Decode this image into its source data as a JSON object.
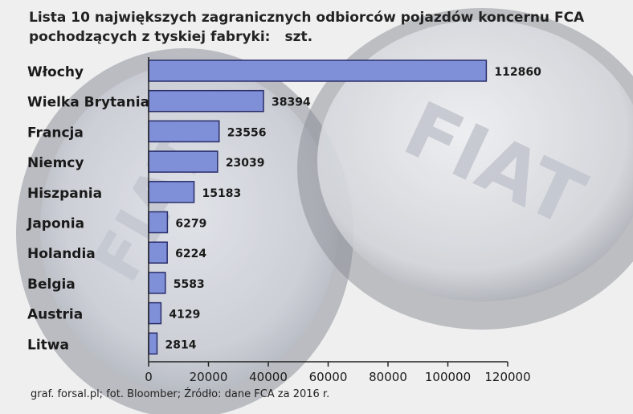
{
  "title_line1": "Lista 10 największych zagranicznych odbiorców pojazdów koncernu FCA",
  "title_line2": "pochodzących z tyskiej fabryki:",
  "unit": "szt.",
  "background_logo_text": "FIAT",
  "source": "graf. forsal.pl; fot. Bloomber; Źródło: dane FCA za 2016 r.",
  "colors": {
    "bar_fill": "#7f8fd8",
    "bar_stroke": "#2a2e6a",
    "text": "#1a1a1a"
  },
  "chart_data": {
    "type": "bar",
    "orientation": "horizontal",
    "categories": [
      "Włochy",
      "Wielka Brytania",
      "Francja",
      "Niemcy",
      "Hiszpania",
      "Japonia",
      "Holandia",
      "Belgia",
      "Austria",
      "Litwa"
    ],
    "values": [
      112860,
      38394,
      23556,
      23039,
      15183,
      6279,
      6224,
      5583,
      4129,
      2814
    ],
    "xlim": [
      0,
      120000
    ],
    "xticks": [
      0,
      20000,
      40000,
      60000,
      80000,
      100000,
      120000
    ],
    "grid": false,
    "legend": "none"
  }
}
